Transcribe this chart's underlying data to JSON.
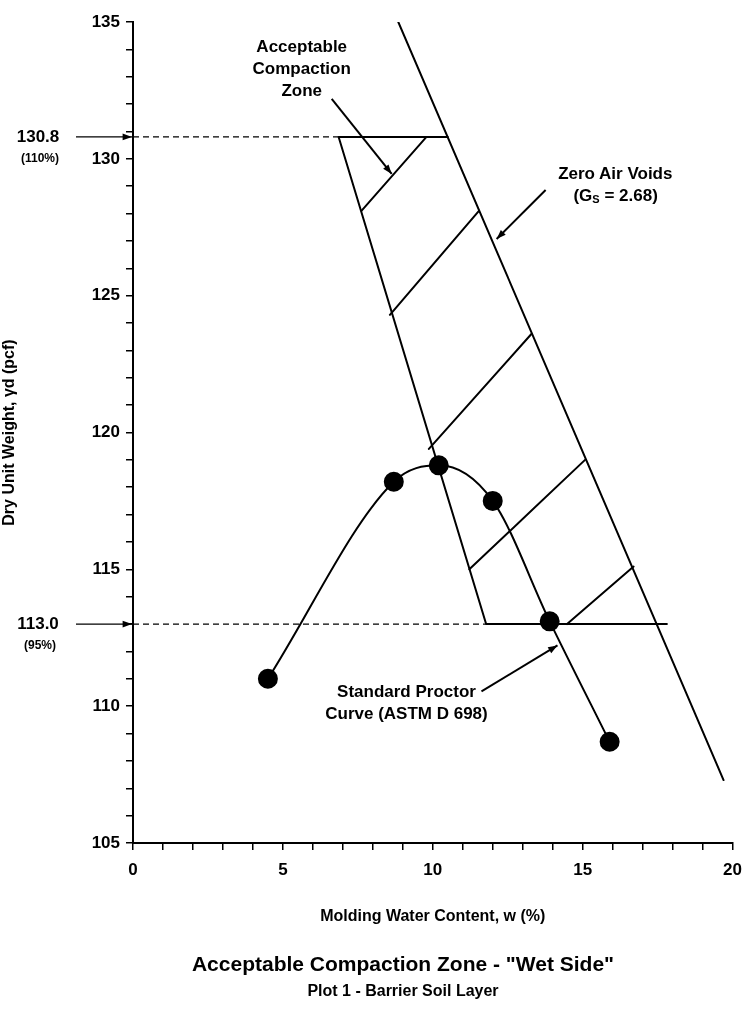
{
  "chart_data": {
    "type": "line",
    "title": "Acceptable Compaction Zone - \"Wet Side\"",
    "subtitle": "Plot 1 - Barrier Soil Layer",
    "xlabel": "Molding Water Content, w (%)",
    "ylabel": "Dry Unit Weight, γd (pcf)",
    "xlim": [
      0,
      20
    ],
    "ylim": [
      105,
      135
    ],
    "xticks": [
      0,
      {
        "value": 1,
        "label": null
      },
      {
        "value": 2,
        "label": null
      },
      {
        "value": 3,
        "label": null
      },
      {
        "value": 4,
        "label": null
      },
      5,
      {
        "value": 6,
        "label": null
      },
      {
        "value": 7,
        "label": null
      },
      {
        "value": 8,
        "label": null
      },
      {
        "value": 9,
        "label": null
      },
      10,
      {
        "value": 11,
        "label": null
      },
      {
        "value": 12,
        "label": null
      },
      {
        "value": 13,
        "label": null
      },
      {
        "value": 14,
        "label": null
      },
      15,
      {
        "value": 16,
        "label": null
      },
      {
        "value": 17,
        "label": null
      },
      {
        "value": 18,
        "label": null
      },
      {
        "value": 19,
        "label": null
      },
      20
    ],
    "yticks": [
      105,
      {
        "value": 106,
        "label": null
      },
      {
        "value": 107,
        "label": null
      },
      {
        "value": 108,
        "label": null
      },
      {
        "value": 109,
        "label": null
      },
      110,
      {
        "value": 111,
        "label": null
      },
      {
        "value": 112,
        "label": null
      },
      {
        "value": 113,
        "label": null
      },
      {
        "value": 114,
        "label": null
      },
      115,
      {
        "value": 116,
        "label": null
      },
      {
        "value": 117,
        "label": null
      },
      {
        "value": 118,
        "label": null
      },
      {
        "value": 119,
        "label": null
      },
      120,
      {
        "value": 121,
        "label": null
      },
      {
        "value": 122,
        "label": null
      },
      {
        "value": 123,
        "label": null
      },
      {
        "value": 124,
        "label": null
      },
      125,
      {
        "value": 126,
        "label": null
      },
      {
        "value": 127,
        "label": null
      },
      {
        "value": 128,
        "label": null
      },
      {
        "value": 129,
        "label": null
      },
      130,
      {
        "value": 131,
        "label": null
      },
      {
        "value": 132,
        "label": null
      },
      {
        "value": 133,
        "label": null
      },
      {
        "value": 134,
        "label": null
      },
      135
    ],
    "series": [
      {
        "color": "#000000",
        "marker": "circle",
        "x": [
          4.5,
          8.7,
          10.2,
          12.0,
          13.9,
          15.9
        ],
        "values": [
          111.0,
          118.2,
          118.8,
          117.5,
          113.1,
          108.7
        ]
      },
      {
        "color": "#000000",
        "x": [
          8.85,
          19.7
        ],
        "values": [
          135,
          107.3
        ]
      },
      {
        "color": "#000000",
        "x": [
          10.5,
          6.86,
          11.78,
          17.81
        ],
        "values": [
          130.8,
          130.8,
          113.0,
          113.0
        ]
      },
      {
        "color": "#000000",
        "x": [
          7.62,
          9.79
        ],
        "values": [
          128.1,
          130.8
        ]
      },
      {
        "color": "#000000",
        "x": [
          8.57,
          11.54
        ],
        "values": [
          124.3,
          128.1
        ]
      },
      {
        "color": "#000000",
        "x": [
          9.87,
          13.29
        ],
        "values": [
          119.4,
          123.6
        ]
      },
      {
        "color": "#000000",
        "x": [
          11.22,
          15.08
        ],
        "values": [
          115.0,
          119.0
        ]
      },
      {
        "color": "#000000",
        "x": [
          14.48,
          16.7
        ],
        "values": [
          113.0,
          115.1
        ]
      }
    ],
    "ref_lines": [
      {
        "axis": "y",
        "value": 130.8,
        "label": "130.8\n(110%)",
        "line_style": "dashed"
      },
      {
        "axis": "y",
        "value": 113.0,
        "label": "113.0\n(95%)",
        "line_style": "dashed"
      }
    ],
    "annotations": [
      {
        "text": "Acceptable\nCompaction\nZone",
        "x": 8.63,
        "y": 129.45
      },
      {
        "text": "Zero Air Voids\n(G$_{S}$ = 2.68)",
        "x": 12.13,
        "y": 127.07
      },
      {
        "text": "Standard Proctor\nCurve (ASTM D 698)",
        "x": 14.16,
        "y": 112.22
      }
    ]
  }
}
